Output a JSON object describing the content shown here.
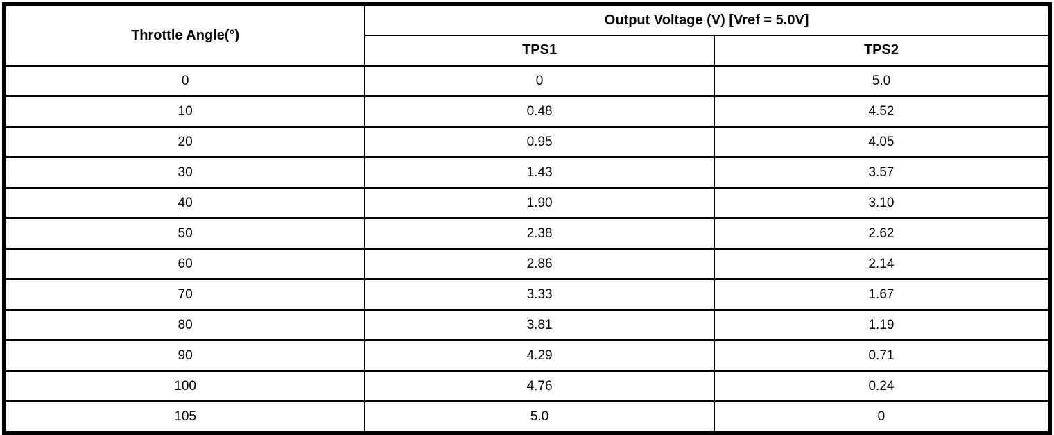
{
  "table": {
    "col1_header": "Throttle Angle(°)",
    "group_header": "Output Voltage (V) [Vref = 5.0V]",
    "sub_headers": [
      "TPS1",
      "TPS2"
    ],
    "rows": [
      [
        "0",
        "0",
        "5.0"
      ],
      [
        "10",
        "0.48",
        "4.52"
      ],
      [
        "20",
        "0.95",
        "4.05"
      ],
      [
        "30",
        "1.43",
        "3.57"
      ],
      [
        "40",
        "1.90",
        "3.10"
      ],
      [
        "50",
        "2.38",
        "2.62"
      ],
      [
        "60",
        "2.86",
        "2.14"
      ],
      [
        "70",
        "3.33",
        "1.67"
      ],
      [
        "80",
        "3.81",
        "1.19"
      ],
      [
        "90",
        "4.29",
        "0.71"
      ],
      [
        "100",
        "4.76",
        "0.24"
      ],
      [
        "105",
        "5.0",
        "0"
      ]
    ]
  },
  "chart_data": {
    "type": "table",
    "title": "Output Voltage (V) [Vref = 5.0V]",
    "columns": [
      "Throttle Angle(°)",
      "TPS1",
      "TPS2"
    ],
    "x_label": "Throttle Angle(°)",
    "x": [
      0,
      10,
      20,
      30,
      40,
      50,
      60,
      70,
      80,
      90,
      100,
      105
    ],
    "series": [
      {
        "name": "TPS1",
        "values": [
          0,
          0.48,
          0.95,
          1.43,
          1.9,
          2.38,
          2.86,
          3.33,
          3.81,
          4.29,
          4.76,
          5.0
        ]
      },
      {
        "name": "TPS2",
        "values": [
          5.0,
          4.52,
          4.05,
          3.57,
          3.1,
          2.62,
          2.14,
          1.67,
          1.19,
          0.71,
          0.24,
          0
        ]
      }
    ],
    "vref": "5.0V",
    "units": "V"
  },
  "colors": {
    "border": "#000000",
    "background": "#ffffff",
    "text": "#000000"
  }
}
